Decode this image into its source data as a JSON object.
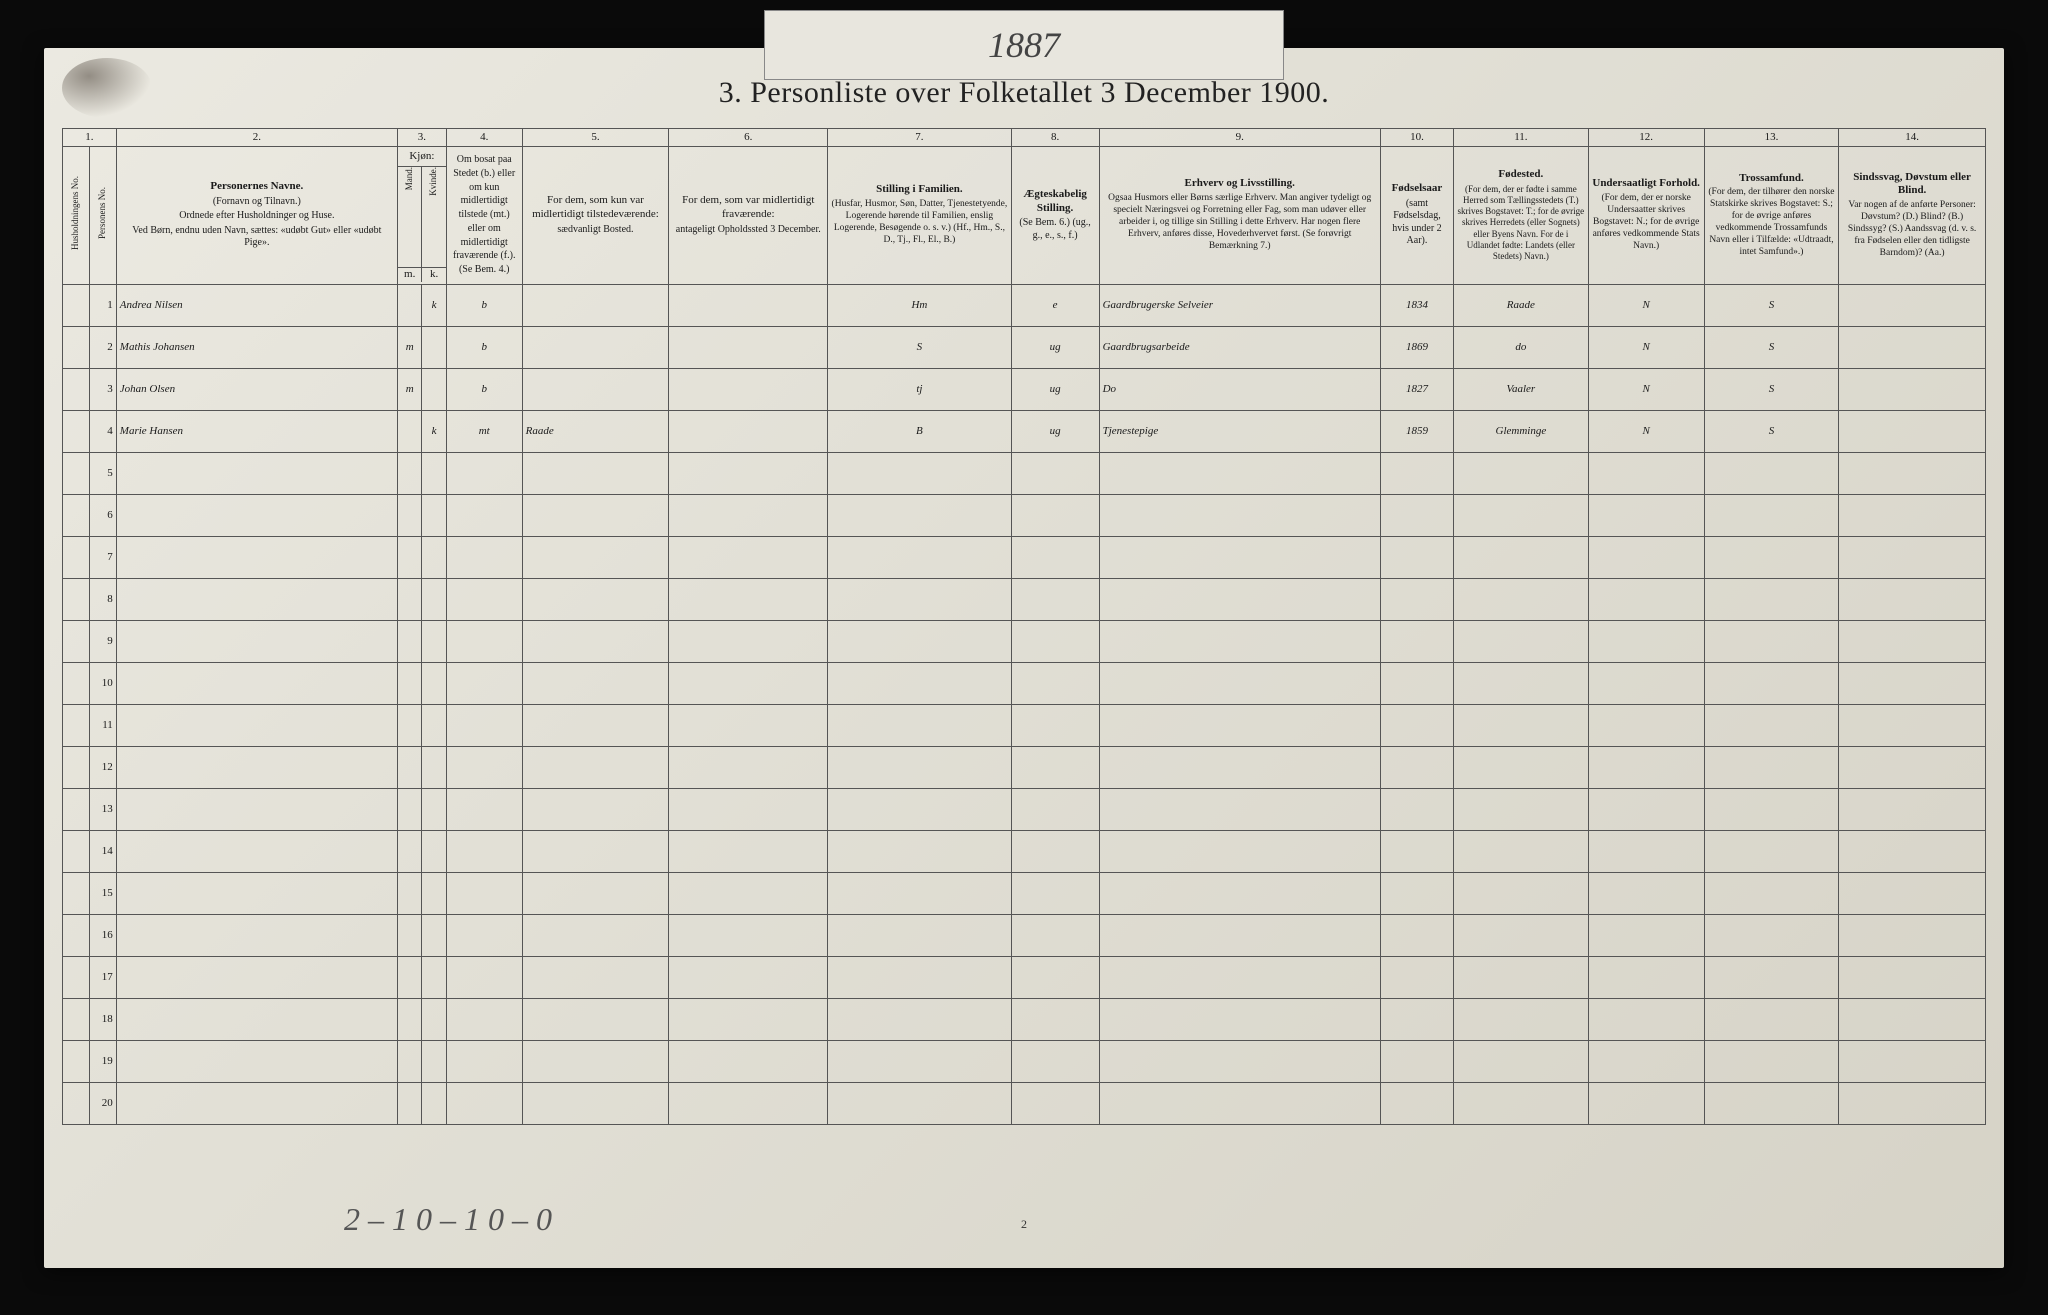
{
  "tab_year": "1887",
  "title": "3.  Personliste over Folketallet 3 December 1900.",
  "columns": {
    "numbers": [
      "1.",
      "2.",
      "3.",
      "4.",
      "5.",
      "6.",
      "7.",
      "8.",
      "9.",
      "10.",
      "11.",
      "12.",
      "13.",
      "14."
    ],
    "c1a": "Husholdningens No.",
    "c1b": "Personens No.",
    "c2_title": "Personernes Navne.",
    "c2_sub1": "(Fornavn og Tilnavn.)",
    "c2_sub2": "Ordnede efter Husholdninger og Huse.",
    "c2_sub3": "Ved Børn, endnu uden Navn, sættes: «udøbt Gut» eller «udøbt Pige».",
    "c3_title": "Kjøn:",
    "c3_m": "Mand.",
    "c3_k": "Kvinde.",
    "c3_mk_m": "m.",
    "c3_mk_k": "k.",
    "c4": "Om bosat paa Stedet (b.) eller om kun midlertidigt tilstede (mt.) eller om midlertidigt fraværende (f.). (Se Bem. 4.)",
    "c5": "For dem, som kun var midlertidigt tilstedeværende:",
    "c5_sub": "sædvanligt Bosted.",
    "c6": "For dem, som var midlertidigt fraværende:",
    "c6_sub": "antageligt Opholdssted 3 December.",
    "c7_title": "Stilling i Familien.",
    "c7_sub": "(Husfar, Husmor, Søn, Datter, Tjenestetyende, Logerende hørende til Familien, enslig Logerende, Besøgende o. s. v.) (Hf., Hm., S., D., Tj., Fl., El., B.)",
    "c8_title": "Ægteskabelig Stilling.",
    "c8_sub": "(Se Bem. 6.) (ug., g., e., s., f.)",
    "c9_title": "Erhverv og Livsstilling.",
    "c9_sub": "Ogsaa Husmors eller Børns særlige Erhverv. Man angiver tydeligt og specielt Næringsvei og Forretning eller Fag, som man udøver eller arbeider i, og tillige sin Stilling i dette Erhverv. Har nogen flere Erhverv, anføres disse, Hovederhvervet først. (Se forøvrigt Bemærkning 7.)",
    "c10_title": "Fødselsaar",
    "c10_sub": "(samt Fødselsdag, hvis under 2 Aar).",
    "c11_title": "Fødested.",
    "c11_sub": "(For dem, der er fødte i samme Herred som Tællingsstedets (T.) skrives Bogstavet: T.; for de øvrige skrives Herredets (eller Sognets) eller Byens Navn. For de i Udlandet fødte: Landets (eller Stedets) Navn.)",
    "c12_title": "Undersaatligt Forhold.",
    "c12_sub": "(For dem, der er norske Undersaatter skrives Bogstavet: N.; for de øvrige anføres vedkommende Stats Navn.)",
    "c13_title": "Trossamfund.",
    "c13_sub": "(For dem, der tilhører den norske Statskirke skrives Bogstavet: S.; for de øvrige anføres vedkommende Trossamfunds Navn eller i Tilfælde: «Udtraadt, intet Samfund».)",
    "c14_title": "Sindssvag, Døvstum eller Blind.",
    "c14_sub": "Var nogen af de anførte Personer: Døvstum? (D.) Blind? (B.) Sindssyg? (S.) Aandssvag (d. v. s. fra Fødselen eller den tidligste Barndom)? (Aa.)"
  },
  "rows": [
    {
      "n": "1",
      "name": "Andrea Nilsen",
      "m": "",
      "k": "k",
      "res": "b",
      "c5": "",
      "c6": "",
      "c7": "Hm",
      "c8": "e",
      "c9": "Gaardbrugerske Selveier",
      "c10": "1834",
      "c11": "Raade",
      "c12": "N",
      "c13": "S",
      "c14": ""
    },
    {
      "n": "2",
      "name": "Mathis Johansen",
      "m": "m",
      "k": "",
      "res": "b",
      "c5": "",
      "c6": "",
      "c7": "S",
      "c8": "ug",
      "c9": "Gaardbrugsarbeide",
      "c10": "1869",
      "c11": "do",
      "c12": "N",
      "c13": "S",
      "c14": ""
    },
    {
      "n": "3",
      "name": "Johan Olsen",
      "m": "m",
      "k": "",
      "res": "b",
      "c5": "",
      "c6": "",
      "c7": "tj",
      "c8": "ug",
      "c9": "Do",
      "c10": "1827",
      "c11": "Vaaler",
      "c12": "N",
      "c13": "S",
      "c14": ""
    },
    {
      "n": "4",
      "name": "Marie Hansen",
      "m": "",
      "k": "k",
      "res": "mt",
      "c5": "Raade",
      "c6": "",
      "c7": "B",
      "c8": "ug",
      "c9": "Tjenestepige",
      "c10": "1859",
      "c11": "Glemminge",
      "c12": "N",
      "c13": "S",
      "c14": ""
    }
  ],
  "total_rows": 20,
  "footer_note": "2 – 1   0 – 1   0 – 0",
  "page_number": "2",
  "style": {
    "bg_body": "#0a0a0a",
    "paper_grad_start": "#ebe9e1",
    "paper_grad_mid": "#e2e0d6",
    "paper_grad_end": "#d6d3c7",
    "border_color": "#555555",
    "text_color": "#1a1a1a",
    "hand_color": "#3a3328",
    "title_fontsize": 30,
    "header_fontsize": 11,
    "hand_fontsize": 20
  }
}
